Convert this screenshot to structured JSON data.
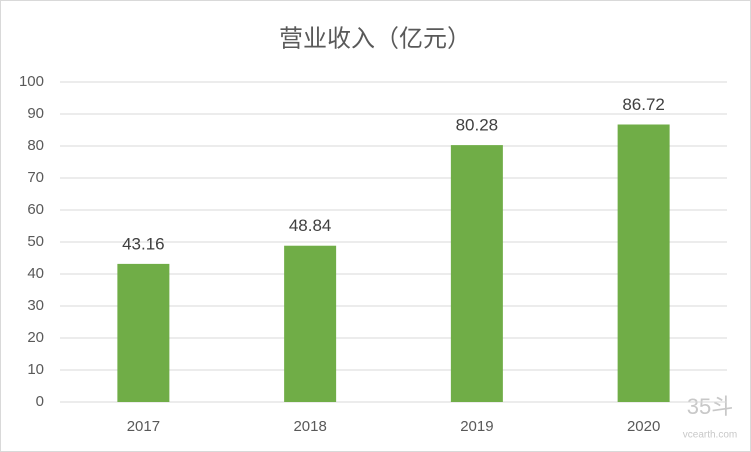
{
  "chart_data": {
    "type": "bar",
    "title": "营业收入（亿元）",
    "categories": [
      "2017",
      "2018",
      "2019",
      "2020"
    ],
    "values": [
      43.16,
      48.84,
      80.28,
      86.72
    ],
    "color": "#70ad47",
    "ylim": [
      0,
      100
    ],
    "yticks": [
      0,
      10,
      20,
      30,
      40,
      50,
      60,
      70,
      80,
      90,
      100
    ],
    "grid": true,
    "watermark": "35斗",
    "watermark_url": "vcearth.com"
  }
}
